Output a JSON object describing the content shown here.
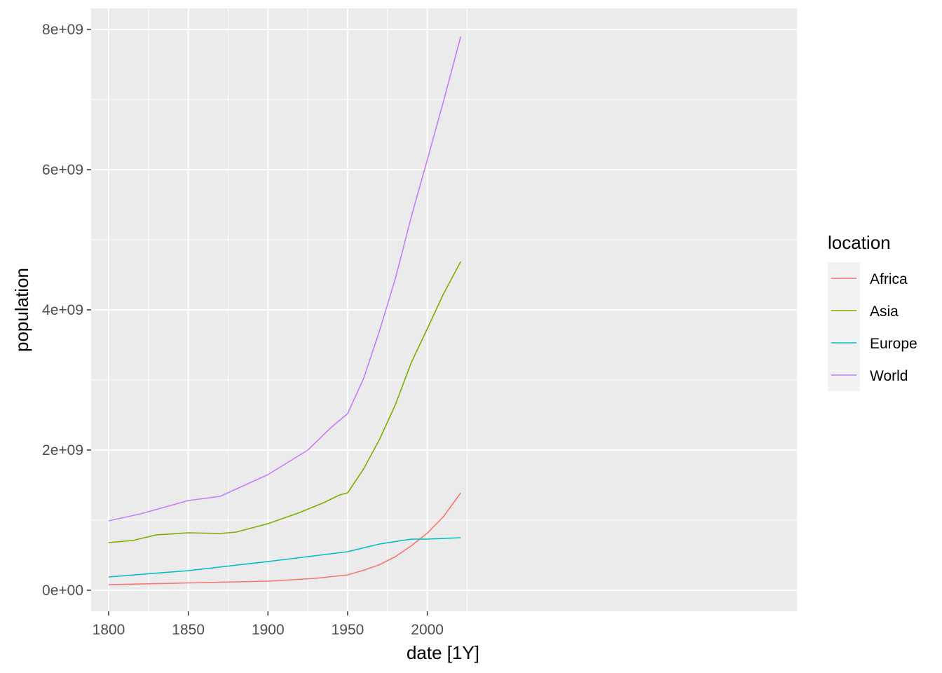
{
  "chart_data": {
    "type": "line",
    "xlabel": "date [1Y]",
    "ylabel": "population",
    "xlim": [
      1789,
      2232
    ],
    "ylim": [
      -300000000.0,
      8300000000.0
    ],
    "x_ticks": [
      1800,
      1850,
      1900,
      1950,
      2000
    ],
    "y_ticks": [
      {
        "value": 0,
        "label": "0e+00"
      },
      {
        "value": 2000000000,
        "label": "2e+09"
      },
      {
        "value": 4000000000,
        "label": "4e+09"
      },
      {
        "value": 6000000000,
        "label": "6e+09"
      },
      {
        "value": 8000000000,
        "label": "8e+09"
      }
    ],
    "grid": true,
    "legend": {
      "title": "location",
      "placement": "right"
    },
    "series": [
      {
        "name": "Africa",
        "color": "#F8766D",
        "x": [
          1800,
          1850,
          1900,
          1930,
          1950,
          1960,
          1970,
          1980,
          1990,
          2000,
          2010,
          2021
        ],
        "y": [
          80000000,
          105000000,
          130000000,
          170000000,
          220000000,
          285000000,
          365000000,
          480000000,
          635000000,
          815000000,
          1045000000,
          1390000000
        ]
      },
      {
        "name": "Asia",
        "color": "#7CAE00",
        "x": [
          1800,
          1815,
          1830,
          1850,
          1870,
          1880,
          1900,
          1920,
          1935,
          1945,
          1950,
          1960,
          1970,
          1980,
          1990,
          2000,
          2010,
          2021
        ],
        "y": [
          680000000,
          710000000,
          790000000,
          820000000,
          810000000,
          830000000,
          950000000,
          1110000000,
          1250000000,
          1360000000,
          1390000000,
          1730000000,
          2150000000,
          2650000000,
          3250000000,
          3730000000,
          4220000000,
          4690000000
        ]
      },
      {
        "name": "Europe",
        "color": "#00BFC4",
        "x": [
          1800,
          1850,
          1900,
          1950,
          1970,
          1990,
          2000,
          2021
        ],
        "y": [
          190000000,
          280000000,
          410000000,
          550000000,
          660000000,
          730000000,
          730000000,
          750000000
        ]
      },
      {
        "name": "World",
        "color": "#C77CFF",
        "x": [
          1800,
          1820,
          1850,
          1870,
          1900,
          1925,
          1940,
          1950,
          1960,
          1970,
          1980,
          1990,
          2000,
          2010,
          2021
        ],
        "y": [
          990000000,
          1090000000,
          1280000000,
          1340000000,
          1650000000,
          2000000000,
          2330000000,
          2520000000,
          3020000000,
          3700000000,
          4450000000,
          5330000000,
          6140000000,
          6960000000,
          7900000000
        ]
      }
    ]
  }
}
